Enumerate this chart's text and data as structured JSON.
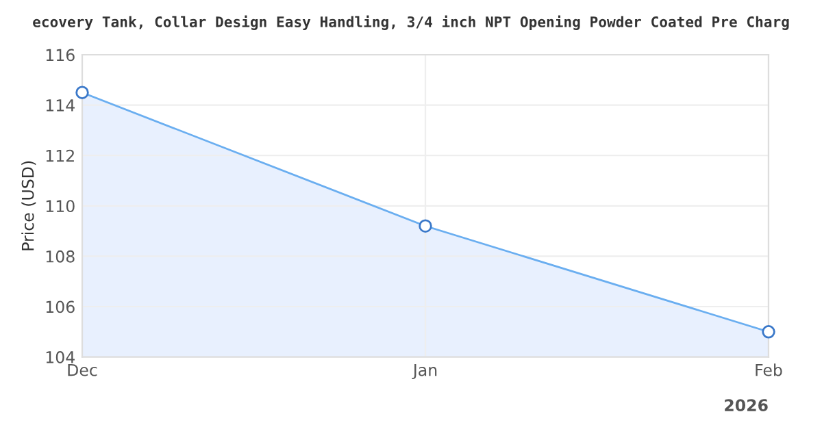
{
  "chart_data": {
    "type": "area",
    "title": "ecovery Tank, Collar Design Easy Handling, 3/4 inch NPT Opening Powder Coated Pre Charg",
    "ylabel": "Price (USD)",
    "x": [
      "2025-12-01",
      "2026-01-01",
      "2026-02-01"
    ],
    "series": [
      {
        "color": "#6aaef0",
        "values": [
          114.5,
          109.2,
          105.0
        ]
      }
    ],
    "xlim": [
      "2025-12-01",
      "2026-02-01"
    ],
    "xticks": [
      {
        "value": "2025-12-01",
        "label": "Dec"
      },
      {
        "value": "2026-01-01",
        "label": "Jan"
      },
      {
        "value": "2026-02-01",
        "label": "Feb"
      }
    ],
    "ylim": [
      104,
      116
    ],
    "yticks": [
      104,
      106,
      108,
      110,
      112,
      114,
      116
    ],
    "annotations": [
      {
        "text": "2026",
        "x": "2026-02-01",
        "y": 104
      }
    ],
    "grid": true,
    "marker": "circle",
    "line_style": "solid",
    "legend": false
  }
}
